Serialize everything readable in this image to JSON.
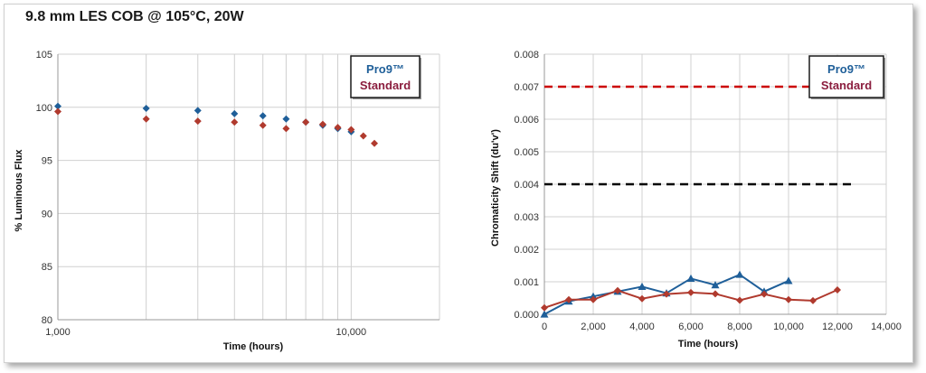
{
  "title": "9.8 mm LES COB @ 105°C, 20W",
  "colors": {
    "pro9": "#1f5f99",
    "standard": "#b03a2e",
    "pro9_legend_text": "#1f5f99",
    "standard_legend_text": "#8b1e3f",
    "grid": "#d0d0d0",
    "red_dash": "#cc0000",
    "black_dash": "#000000"
  },
  "chart_data": [
    {
      "type": "scatter",
      "xscale": "log",
      "xlabel": "Time (hours)",
      "ylabel": "% Luminous Flux",
      "xlim": [
        1000,
        20000
      ],
      "ylim": [
        80,
        105
      ],
      "yticks": [
        "80",
        "85",
        "90",
        "95",
        "100",
        "105"
      ],
      "xticks": [
        {
          "value": 1000,
          "label": "1,000"
        },
        {
          "value": 10000,
          "label": "10,000"
        }
      ],
      "grid": true,
      "legend_position": "top-right",
      "legend": [
        "Pro9™",
        "Standard"
      ],
      "series": [
        {
          "name": "Pro9™",
          "color": "#1f5f99",
          "marker": "diamond",
          "x": [
            1000,
            2000,
            3000,
            4000,
            5000,
            6000,
            7000,
            8000,
            9000,
            10000
          ],
          "y": [
            100.1,
            99.9,
            99.7,
            99.4,
            99.2,
            98.9,
            98.6,
            98.3,
            98.0,
            97.7
          ]
        },
        {
          "name": "Standard",
          "color": "#b03a2e",
          "marker": "diamond",
          "x": [
            1000,
            2000,
            3000,
            4000,
            5000,
            6000,
            7000,
            8000,
            9000,
            10000,
            11000,
            12000
          ],
          "y": [
            99.6,
            98.9,
            98.7,
            98.6,
            98.3,
            98.0,
            98.6,
            98.4,
            98.1,
            97.9,
            97.3,
            96.6
          ]
        }
      ]
    },
    {
      "type": "line",
      "xlabel": "Time (hours)",
      "ylabel": "Chromaticity Shift (du'v')",
      "xlim": [
        0,
        14000
      ],
      "ylim": [
        0,
        0.008
      ],
      "yticks": [
        "0.000",
        "0.001",
        "0.002",
        "0.003",
        "0.004",
        "0.005",
        "0.006",
        "0.007",
        "0.008"
      ],
      "xticks": [
        {
          "value": 0,
          "label": "0"
        },
        {
          "value": 2000,
          "label": "2,000"
        },
        {
          "value": 4000,
          "label": "4,000"
        },
        {
          "value": 6000,
          "label": "6,000"
        },
        {
          "value": 8000,
          "label": "8,000"
        },
        {
          "value": 10000,
          "label": "10,000"
        },
        {
          "value": 12000,
          "label": "12,000"
        },
        {
          "value": 14000,
          "label": "14,000"
        }
      ],
      "grid": true,
      "legend_position": "top-right",
      "legend": [
        "Pro9™",
        "Standard"
      ],
      "reference_lines": [
        {
          "y": 0.007,
          "color": "#cc0000",
          "x_start": 0,
          "x_end": 12700
        },
        {
          "y": 0.004,
          "color": "#000000",
          "x_start": 0,
          "x_end": 12700
        }
      ],
      "series": [
        {
          "name": "Pro9™",
          "color": "#1f5f99",
          "marker": "triangle",
          "x": [
            0,
            1000,
            2000,
            3000,
            4000,
            5000,
            6000,
            7000,
            8000,
            9000,
            10000
          ],
          "y": [
            0.0,
            0.0004,
            0.00055,
            0.0007,
            0.00085,
            0.00065,
            0.0011,
            0.0009,
            0.00122,
            0.0007,
            0.00103
          ]
        },
        {
          "name": "Standard",
          "color": "#b03a2e",
          "marker": "diamond",
          "x": [
            0,
            1000,
            2000,
            3000,
            4000,
            5000,
            6000,
            7000,
            8000,
            9000,
            10000,
            11000,
            12000
          ],
          "y": [
            0.0002,
            0.00045,
            0.00045,
            0.00073,
            0.00048,
            0.00062,
            0.00067,
            0.00063,
            0.00043,
            0.00062,
            0.00045,
            0.00042,
            0.00075
          ]
        }
      ]
    }
  ]
}
